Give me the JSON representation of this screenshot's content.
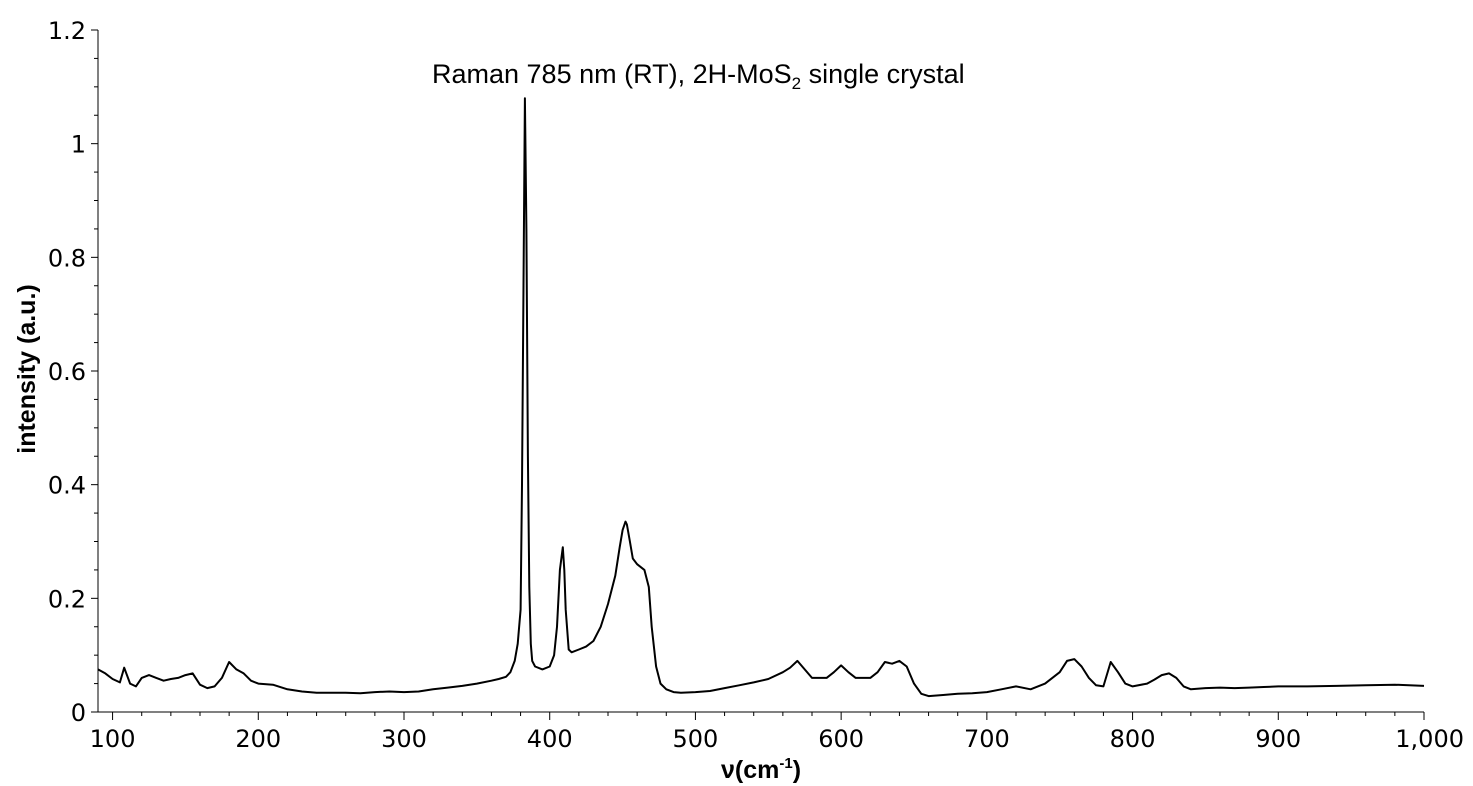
{
  "chart_data": {
    "type": "line",
    "title": "Raman 785 nm (RT), 2H-MoS",
    "title_sub": "2",
    "title_suffix": " single crystal",
    "xlabel": "ν(cm",
    "xlabel_sup": "-1",
    "xlabel_suffix": ")",
    "ylabel": "intensity (a.u.)",
    "xlim": [
      90,
      1000
    ],
    "ylim": [
      0,
      1.2
    ],
    "xticks": [
      100,
      200,
      300,
      400,
      500,
      600,
      700,
      800,
      900,
      1000
    ],
    "xtick_labels": [
      "100",
      "200",
      "300",
      "400",
      "500",
      "600",
      "700",
      "800",
      "900",
      "1,000"
    ],
    "yticks": [
      0,
      0.2,
      0.4,
      0.6,
      0.8,
      1.0,
      1.2
    ],
    "ytick_labels": [
      "0",
      "0.2",
      "0.4",
      "0.6",
      "0.8",
      "1",
      "1.2"
    ],
    "grid": false,
    "line_color": "#000000",
    "series": [
      {
        "x": [
          90,
          95,
          100,
          105,
          108,
          112,
          116,
          120,
          125,
          130,
          135,
          140,
          145,
          150,
          155,
          160,
          165,
          170,
          175,
          180,
          185,
          190,
          195,
          200,
          210,
          220,
          230,
          240,
          250,
          260,
          270,
          280,
          290,
          300,
          310,
          320,
          330,
          340,
          350,
          360,
          365,
          370,
          373,
          376,
          378,
          380,
          381,
          382,
          383,
          384,
          385,
          386,
          387,
          388,
          390,
          395,
          400,
          403,
          405,
          407,
          409,
          410,
          411,
          413,
          415,
          420,
          425,
          430,
          435,
          440,
          445,
          448,
          450,
          452,
          453,
          455,
          457,
          460,
          465,
          468,
          470,
          473,
          476,
          480,
          485,
          490,
          500,
          510,
          520,
          530,
          540,
          550,
          560,
          565,
          570,
          575,
          580,
          590,
          595,
          600,
          605,
          610,
          620,
          625,
          630,
          635,
          640,
          645,
          650,
          655,
          660,
          670,
          680,
          690,
          700,
          710,
          720,
          730,
          740,
          750,
          755,
          760,
          765,
          770,
          775,
          780,
          785,
          790,
          795,
          800,
          810,
          815,
          820,
          825,
          830,
          835,
          840,
          850,
          860,
          870,
          880,
          890,
          900,
          920,
          940,
          960,
          980,
          1000
        ],
        "y": [
          0.075,
          0.068,
          0.058,
          0.052,
          0.078,
          0.05,
          0.045,
          0.06,
          0.065,
          0.06,
          0.055,
          0.058,
          0.06,
          0.065,
          0.068,
          0.048,
          0.042,
          0.045,
          0.06,
          0.088,
          0.075,
          0.068,
          0.055,
          0.05,
          0.048,
          0.04,
          0.036,
          0.034,
          0.034,
          0.034,
          0.033,
          0.035,
          0.036,
          0.035,
          0.036,
          0.04,
          0.043,
          0.046,
          0.05,
          0.055,
          0.058,
          0.062,
          0.07,
          0.09,
          0.12,
          0.18,
          0.4,
          0.75,
          1.08,
          0.85,
          0.45,
          0.22,
          0.12,
          0.09,
          0.08,
          0.075,
          0.08,
          0.1,
          0.15,
          0.25,
          0.29,
          0.25,
          0.18,
          0.11,
          0.105,
          0.11,
          0.115,
          0.125,
          0.15,
          0.19,
          0.24,
          0.29,
          0.32,
          0.335,
          0.33,
          0.3,
          0.27,
          0.26,
          0.25,
          0.22,
          0.15,
          0.08,
          0.05,
          0.04,
          0.035,
          0.034,
          0.035,
          0.037,
          0.042,
          0.047,
          0.052,
          0.058,
          0.07,
          0.078,
          0.09,
          0.075,
          0.06,
          0.06,
          0.07,
          0.082,
          0.07,
          0.06,
          0.06,
          0.07,
          0.088,
          0.085,
          0.09,
          0.08,
          0.05,
          0.032,
          0.028,
          0.03,
          0.032,
          0.033,
          0.035,
          0.04,
          0.045,
          0.04,
          0.05,
          0.07,
          0.09,
          0.093,
          0.08,
          0.06,
          0.047,
          0.045,
          0.088,
          0.07,
          0.05,
          0.045,
          0.05,
          0.057,
          0.065,
          0.068,
          0.06,
          0.045,
          0.04,
          0.042,
          0.043,
          0.042,
          0.043,
          0.044,
          0.045,
          0.045,
          0.046,
          0.047,
          0.048,
          0.046
        ]
      }
    ]
  }
}
